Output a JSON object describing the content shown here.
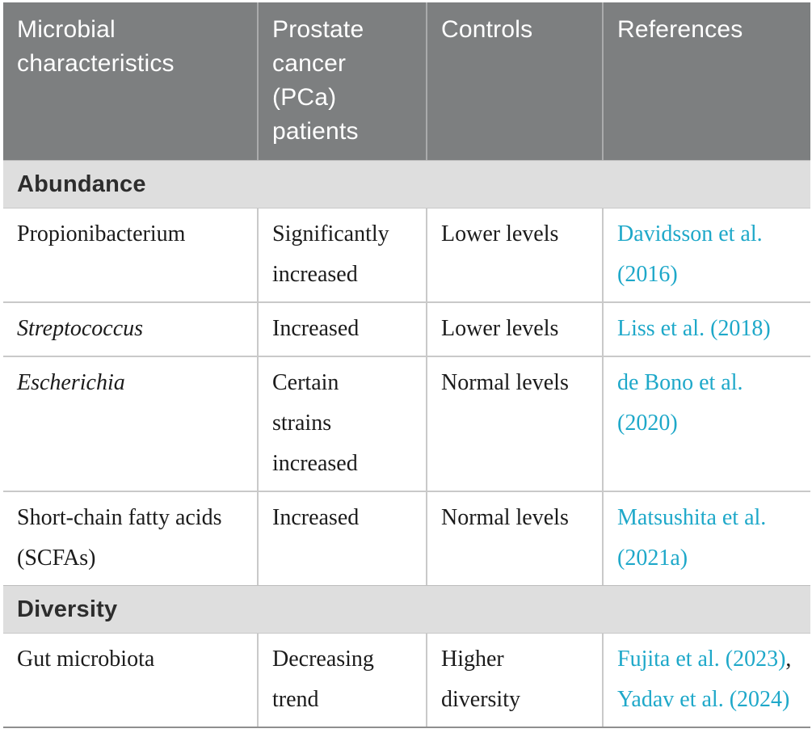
{
  "table": {
    "columns": [
      {
        "label": "Microbial characteristics"
      },
      {
        "label": "Prostate cancer (PCa) patients"
      },
      {
        "label": "Controls"
      },
      {
        "label": "References"
      }
    ],
    "rows": [
      {
        "type": "section",
        "label": "Abundance"
      },
      {
        "type": "data",
        "characteristic": {
          "text": "Propionibacterium",
          "italic": false
        },
        "pca": "Significantly\nincreased",
        "controls": "Lower levels",
        "references": [
          {
            "text": "Davidsson et al.\n(2016)"
          }
        ],
        "ref_separator": ","
      },
      {
        "type": "data",
        "characteristic": {
          "text": "Streptococcus",
          "italic": true
        },
        "pca": "Increased",
        "controls": "Lower levels",
        "references": [
          {
            "text": "Liss et al. (2018)"
          }
        ],
        "ref_separator": ","
      },
      {
        "type": "data",
        "characteristic": {
          "text": "Escherichia",
          "italic": true
        },
        "pca": "Certain\nstrains\nincreased",
        "controls": "Normal levels",
        "references": [
          {
            "text": "de Bono et al.\n(2020)"
          }
        ],
        "ref_separator": ","
      },
      {
        "type": "data",
        "characteristic": {
          "text": "Short-chain fatty acids\n(SCFAs)",
          "italic": false
        },
        "pca": "Increased",
        "controls": "Normal levels",
        "references": [
          {
            "text": "Matsushita et al.\n(2021a)"
          }
        ],
        "ref_separator": ","
      },
      {
        "type": "section",
        "label": "Diversity"
      },
      {
        "type": "data",
        "characteristic": {
          "text": "Gut microbiota",
          "italic": false
        },
        "pca": "Decreasing\ntrend",
        "controls": "Higher\ndiversity",
        "references": [
          {
            "text": "Fujita et al. (2023)"
          },
          {
            "text": "Yadav et al. (2024)"
          }
        ],
        "ref_separator": ","
      }
    ],
    "colors": {
      "header_bg": "#7d7f80",
      "header_text": "#ffffff",
      "section_bg": "#dedede",
      "section_text": "#2d2d2d",
      "body_text": "#1b1b1b",
      "link_teal": "#1ea8c9",
      "grid_line": "#c9c9c9",
      "bottom_border": "#8f8f8f"
    }
  }
}
